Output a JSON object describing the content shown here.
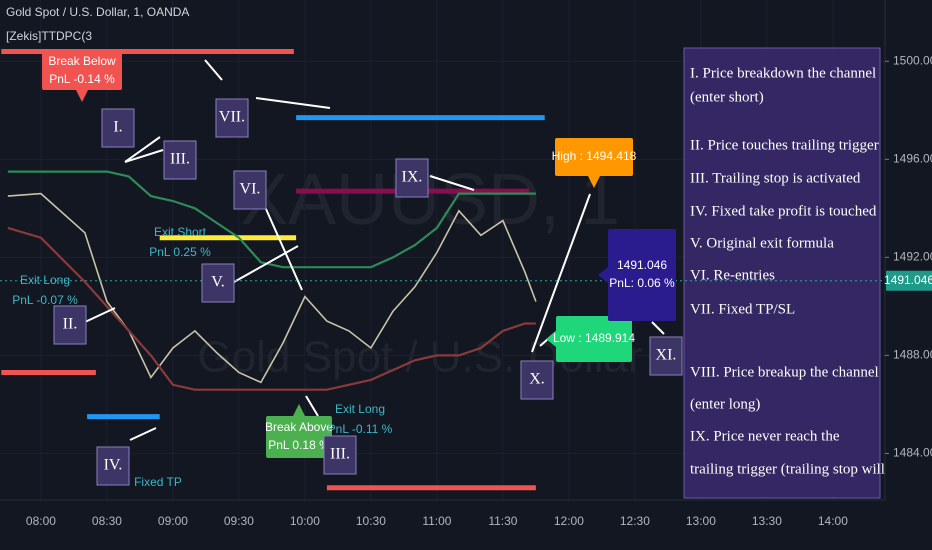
{
  "chart_data": {
    "type": "line",
    "header": [
      "Gold Spot / U.S. Dollar, 1, OANDA",
      "[Zekis]TTDPC(3"
    ],
    "watermark": [
      "XAUUSD, 1",
      "Gold Spot / U.S. Dollar"
    ],
    "x": [
      465,
      480,
      500,
      510,
      520,
      530,
      540,
      550,
      560,
      570,
      580,
      590,
      600,
      610,
      620,
      630,
      640,
      650,
      660,
      670,
      680,
      690,
      700,
      705
    ],
    "series": [
      {
        "color": "#c9c3a8",
        "values": [
          1494.5,
          1494.6,
          1493,
          1490.2,
          1489,
          1487.1,
          1488.3,
          1489,
          1488.1,
          1487.3,
          1486.9,
          1488.5,
          1490.4,
          1489.4,
          1489,
          1488.3,
          1489.8,
          1490.8,
          1492.2,
          1493.9,
          1492.9,
          1493.5,
          1491.4,
          1490.2
        ]
      },
      {
        "color": "#2e8b57",
        "values": [
          1495.5,
          1495.5,
          1495.5,
          1495.5,
          1495.3,
          1494.5,
          1494.3,
          1494,
          1493.4,
          1492.8,
          1491.8,
          1491.6,
          1491.6,
          1491.6,
          1491.6,
          1491.6,
          1492,
          1492.5,
          1493.2,
          1494.6,
          1494.6,
          1494.6,
          1494.6,
          1494.6
        ]
      },
      {
        "color": "#8b3a3a",
        "values": [
          1493.2,
          1492.8,
          1491,
          1490,
          1489,
          1488,
          1486.8,
          1486.6,
          1486.6,
          1486.6,
          1486.6,
          1486.6,
          1486.6,
          1486.6,
          1486.8,
          1487,
          1487.4,
          1487.8,
          1488,
          1488,
          1488.3,
          1489,
          1489.3,
          1489.3
        ]
      }
    ],
    "levels": [
      {
        "price": 1500.4,
        "color": "#f05350",
        "start": 462,
        "end": 595
      },
      {
        "price": 1497.7,
        "color": "#2196f3",
        "start": 596,
        "end": 709
      },
      {
        "price": 1494.7,
        "color": "#880e4f",
        "start": 596,
        "end": 702
      },
      {
        "price": 1492.8,
        "color": "#ffeb3b",
        "start": 534,
        "end": 596
      },
      {
        "price": 1487.3,
        "color": "#f05350",
        "start": 462,
        "end": 505
      },
      {
        "price": 1485.5,
        "color": "#2196f3",
        "start": 501,
        "end": 534
      },
      {
        "price": 1482.6,
        "color": "#f05350",
        "start": 610,
        "end": 705
      }
    ],
    "current_price": 1491.046,
    "xlim": [
      461.4,
      863.7
    ],
    "ylim": [
      1482.1,
      1502.5
    ],
    "xticks": [
      {
        "value": 480,
        "label": "08:00"
      },
      {
        "value": 510,
        "label": "08:30"
      },
      {
        "value": 540,
        "label": "09:00"
      },
      {
        "value": 570,
        "label": "09:30"
      },
      {
        "value": 600,
        "label": "10:00"
      },
      {
        "value": 630,
        "label": "10:30"
      },
      {
        "value": 660,
        "label": "11:00"
      },
      {
        "value": 690,
        "label": "11:30"
      },
      {
        "value": 720,
        "label": "12:00"
      },
      {
        "value": 750,
        "label": "12:30"
      },
      {
        "value": 780,
        "label": "13:00"
      },
      {
        "value": 810,
        "label": "13:30"
      },
      {
        "value": 840,
        "label": "14:00"
      }
    ],
    "yticks": [
      {
        "value": 1484,
        "label": "1484.000"
      },
      {
        "value": 1488,
        "label": "1488.000"
      },
      {
        "value": 1492,
        "label": "1492.000"
      },
      {
        "value": 1496,
        "label": "1496.000"
      },
      {
        "value": 1500,
        "label": "1500.000"
      }
    ],
    "grid": true,
    "signals": [
      {
        "lines": [
          "Break Below",
          "PnL -0.14 %"
        ],
        "color": "#f05350"
      },
      {
        "lines": [
          "Break Above",
          "PnL 0.18 %"
        ],
        "color": "#4caf50"
      },
      {
        "lines": [
          "High : 1494.418"
        ],
        "color": "#ff9800"
      },
      {
        "lines": [
          "Low : 1489.914"
        ],
        "color": "#1fd67a"
      },
      {
        "lines": [
          "PnL: 0.06 %"
        ],
        "color": "#2a1b8f"
      }
    ],
    "exits": [
      {
        "lines": [
          "Exit Long",
          "PnL -0.07 %"
        ]
      },
      {
        "lines": [
          "Exit Short",
          "PnL 0.25 %"
        ]
      },
      {
        "lines": [
          "Exit Long",
          "PnL -0.11 %"
        ]
      },
      {
        "lines": [
          "Fixed TP"
        ]
      }
    ],
    "exit_color": "#3bb8c8",
    "steps": [
      "I.",
      "II.",
      "III.",
      "III.",
      "IV.",
      "V.",
      "VI.",
      "VII.",
      "IX.",
      "X.",
      "XI."
    ],
    "notes": [
      "I. Price breakdown the channel",
      "(enter short)",
      "II. Price touches trailing trigger",
      "III. Trailing stop is activated",
      "IV. Fixed take profit is touched",
      "V. Original exit formula",
      "VI. Re-entries",
      "VII. Fixed TP/SL",
      "VIII. Price breakup the channel",
      "(enter long)",
      "IX. Price never reach the",
      "trailing trigger (trailing stop will"
    ]
  }
}
